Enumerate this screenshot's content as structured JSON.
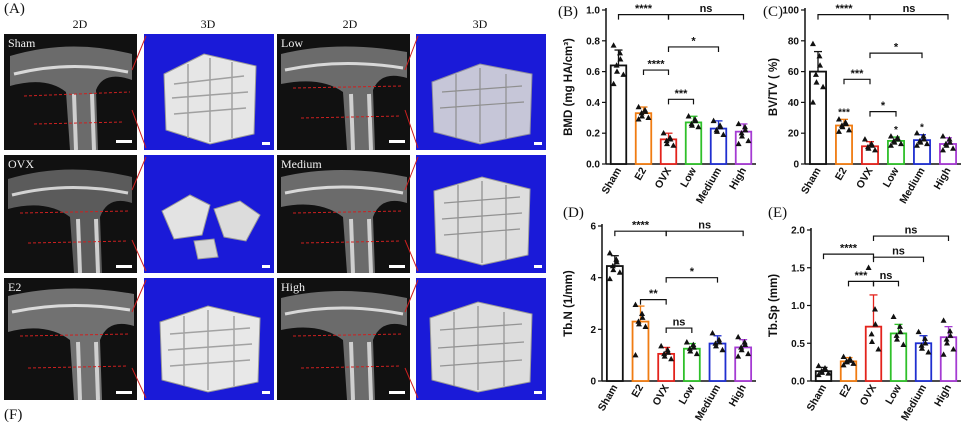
{
  "panel_labels": {
    "a": "(A)",
    "b": "(B)",
    "c": "(C)",
    "d": "(D)",
    "e": "(E)",
    "f": "(F)"
  },
  "headers": [
    "2D",
    "3D",
    "2D",
    "3D"
  ],
  "groups": [
    "Sham",
    "OVX",
    "E2",
    "Low",
    "Medium",
    "High"
  ],
  "colors": {
    "Sham": "#111111",
    "E2": "#f07c12",
    "OVX": "#e3231c",
    "Low": "#2fc02a",
    "Medium": "#1f2fd0",
    "High": "#a53bd3"
  },
  "chart_data": [
    {
      "type": "bar",
      "id": "B",
      "categories": [
        "Sham",
        "E2",
        "OVX",
        "Low",
        "Medium",
        "High"
      ],
      "values": [
        0.64,
        0.33,
        0.16,
        0.27,
        0.23,
        0.21
      ],
      "errors": [
        0.1,
        0.04,
        0.04,
        0.04,
        0.05,
        0.05
      ],
      "ylabel": "BMD (mg HA/cm³)",
      "ylim": [
        0,
        1.0
      ],
      "yticks": [
        "0.0",
        "0.2",
        "0.4",
        "0.6",
        "0.8",
        "1.0"
      ],
      "points": [
        [
          0.77,
          0.72,
          0.68,
          0.64,
          0.6,
          0.58,
          0.52
        ],
        [
          0.37,
          0.35,
          0.34,
          0.33,
          0.31,
          0.3,
          0.29
        ],
        [
          0.2,
          0.17,
          0.16,
          0.15,
          0.13,
          0.12
        ],
        [
          0.31,
          0.29,
          0.28,
          0.26,
          0.25,
          0.24
        ],
        [
          0.28,
          0.25,
          0.24,
          0.22,
          0.21,
          0.19
        ],
        [
          0.26,
          0.24,
          0.22,
          0.2,
          0.18,
          0.15,
          0.13
        ]
      ],
      "brackets": [
        {
          "from": 0,
          "to": 2,
          "level": 0.97,
          "text": "****"
        },
        {
          "from": 2,
          "to": 5,
          "level": 0.97,
          "text": "ns"
        },
        {
          "from": 2,
          "to": 4,
          "level": 0.76,
          "text": "*"
        },
        {
          "from": 1,
          "to": 2,
          "level": 0.61,
          "text": "****"
        },
        {
          "from": 2,
          "to": 3,
          "level": 0.42,
          "text": "***"
        }
      ],
      "bar_marks": []
    },
    {
      "type": "bar",
      "id": "C",
      "categories": [
        "Sham",
        "E2",
        "OVX",
        "Low",
        "Medium",
        "High"
      ],
      "values": [
        60,
        25,
        11.5,
        15,
        15.5,
        13
      ],
      "errors": [
        13,
        4,
        3,
        2.5,
        3.5,
        4
      ],
      "ylabel": "BV/TV ( %)",
      "ylim": [
        0,
        100
      ],
      "yticks": [
        "0",
        "20",
        "40",
        "60",
        "80",
        "100"
      ],
      "points": [
        [
          78,
          70,
          64,
          58,
          53,
          50,
          40
        ],
        [
          29,
          27,
          26,
          25,
          24,
          22,
          21
        ],
        [
          16,
          13,
          12,
          11,
          10,
          9
        ],
        [
          18,
          17,
          16,
          15,
          14,
          13,
          12
        ],
        [
          20,
          18,
          16,
          15,
          14,
          13,
          12
        ],
        [
          18,
          16,
          14,
          13,
          12,
          10,
          9
        ]
      ],
      "brackets": [
        {
          "from": 0,
          "to": 2,
          "level": 97,
          "text": "****"
        },
        {
          "from": 2,
          "to": 5,
          "level": 97,
          "text": "ns"
        },
        {
          "from": 2,
          "to": 4,
          "level": 72,
          "text": "*"
        },
        {
          "from": 1,
          "to": 2,
          "level": 55,
          "text": "***"
        },
        {
          "from": 2,
          "to": 3,
          "level": 34,
          "text": "*"
        }
      ],
      "bar_marks": [
        {
          "index": 1,
          "text": "***"
        },
        {
          "index": 3,
          "text": "*"
        },
        {
          "index": 4,
          "text": "*"
        }
      ]
    },
    {
      "type": "bar",
      "id": "D",
      "categories": [
        "Sham",
        "E2",
        "OVX",
        "Low",
        "Medium",
        "High"
      ],
      "values": [
        4.45,
        2.3,
        1.05,
        1.25,
        1.45,
        1.3
      ],
      "errors": [
        0.4,
        0.6,
        0.25,
        0.2,
        0.3,
        0.3
      ],
      "ylabel": "Tb.N (1/mm)",
      "ylim": [
        0,
        6
      ],
      "yticks": [
        "0",
        "2",
        "4",
        "6"
      ],
      "points": [
        [
          4.95,
          4.7,
          4.6,
          4.45,
          4.3,
          4.2,
          3.95
        ],
        [
          2.95,
          2.6,
          2.45,
          2.3,
          2.2,
          2.1,
          1.0
        ],
        [
          1.35,
          1.2,
          1.1,
          1.05,
          0.95,
          0.85
        ],
        [
          1.5,
          1.4,
          1.3,
          1.25,
          1.15,
          1.05
        ],
        [
          1.85,
          1.6,
          1.5,
          1.45,
          1.35,
          1.2
        ],
        [
          1.7,
          1.5,
          1.4,
          1.3,
          1.2,
          1.05,
          0.95
        ]
      ],
      "brackets": [
        {
          "from": 0,
          "to": 2,
          "level": 5.8,
          "text": "****"
        },
        {
          "from": 2,
          "to": 5,
          "level": 5.8,
          "text": "ns"
        },
        {
          "from": 2,
          "to": 4,
          "level": 4.0,
          "text": "*"
        },
        {
          "from": 1,
          "to": 2,
          "level": 3.15,
          "text": "**"
        },
        {
          "from": 2,
          "to": 3,
          "level": 2.05,
          "text": "ns"
        }
      ],
      "bar_marks": []
    },
    {
      "type": "bar",
      "id": "E",
      "categories": [
        "Sham",
        "E2",
        "OVX",
        "Low",
        "Medium",
        "High"
      ],
      "values": [
        0.13,
        0.26,
        0.72,
        0.63,
        0.5,
        0.58
      ],
      "errors": [
        0.05,
        0.05,
        0.42,
        0.12,
        0.1,
        0.14
      ],
      "ylabel": "Tb.Sp (mm)",
      "ylim": [
        0,
        2.0
      ],
      "yticks": [
        "0.0",
        "0.5",
        "1.0",
        "1.5",
        "2.0"
      ],
      "points": [
        [
          0.2,
          0.17,
          0.15,
          0.13,
          0.11,
          0.1,
          0.08
        ],
        [
          0.32,
          0.29,
          0.27,
          0.26,
          0.25,
          0.23,
          0.21
        ],
        [
          1.5,
          0.95,
          0.75,
          0.62,
          0.52,
          0.42
        ],
        [
          0.85,
          0.72,
          0.65,
          0.6,
          0.55,
          0.48
        ],
        [
          0.65,
          0.56,
          0.5,
          0.47,
          0.43,
          0.38
        ],
        [
          0.8,
          0.66,
          0.6,
          0.55,
          0.5,
          0.42,
          0.35
        ]
      ],
      "brackets": [
        {
          "from": 0,
          "to": 2,
          "level": 1.68,
          "text": "****"
        },
        {
          "from": 2,
          "to": 5,
          "level": 1.92,
          "text": "ns"
        },
        {
          "from": 2,
          "to": 4,
          "level": 1.64,
          "text": "ns"
        },
        {
          "from": 1,
          "to": 2,
          "level": 1.32,
          "text": "***"
        },
        {
          "from": 2,
          "to": 3,
          "level": 1.32,
          "text": "ns"
        }
      ],
      "bar_marks": []
    }
  ]
}
